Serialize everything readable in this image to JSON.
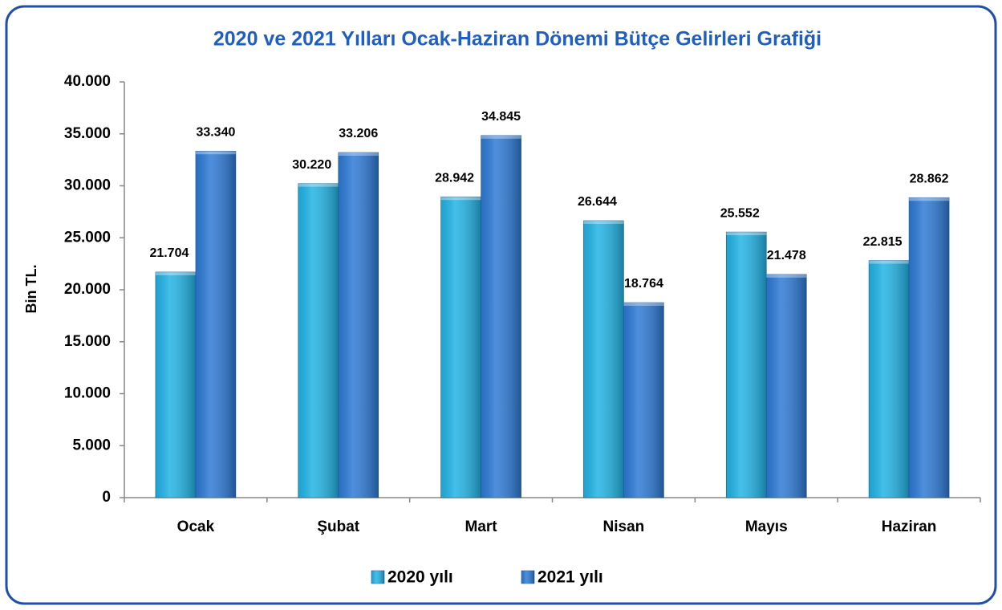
{
  "chart_data": {
    "type": "bar",
    "title": "2020 ve 2021 Yılları Ocak-Haziran Dönemi Bütçe Gelirleri Grafiği",
    "y_label": "Bin TL.",
    "categories": [
      "Ocak",
      "Şubat",
      "Mart",
      "Nisan",
      "Mayıs",
      "Haziran"
    ],
    "series": [
      {
        "name": "2020 yılı",
        "color": "#22b4e6",
        "values": [
          21704,
          30220,
          28942,
          26644,
          25552,
          22815
        ],
        "value_labels": [
          "21.704",
          "30.220",
          "28.942",
          "26.644",
          "25.552",
          "22.815"
        ]
      },
      {
        "name": "2021 yılı",
        "color": "#2e7ad6",
        "values": [
          33340,
          33206,
          34845,
          18764,
          21478,
          28862
        ],
        "value_labels": [
          "33.340",
          "33.206",
          "34.845",
          "18.764",
          "21.478",
          "28.862"
        ]
      }
    ],
    "ylim": [
      0,
      40000
    ],
    "yticks": [
      0,
      {
        "value": 5000,
        "label": "5.000"
      },
      {
        "value": 10000,
        "label": "10.000"
      },
      {
        "value": 15000,
        "label": "15.000"
      },
      {
        "value": 20000,
        "label": "20.000"
      },
      {
        "value": 25000,
        "label": "25.000"
      },
      {
        "value": 30000,
        "label": "30.000"
      },
      {
        "value": 35000,
        "label": "35.000"
      },
      {
        "value": 40000,
        "label": "40.000"
      }
    ],
    "grid": false,
    "legend": "bottom"
  }
}
